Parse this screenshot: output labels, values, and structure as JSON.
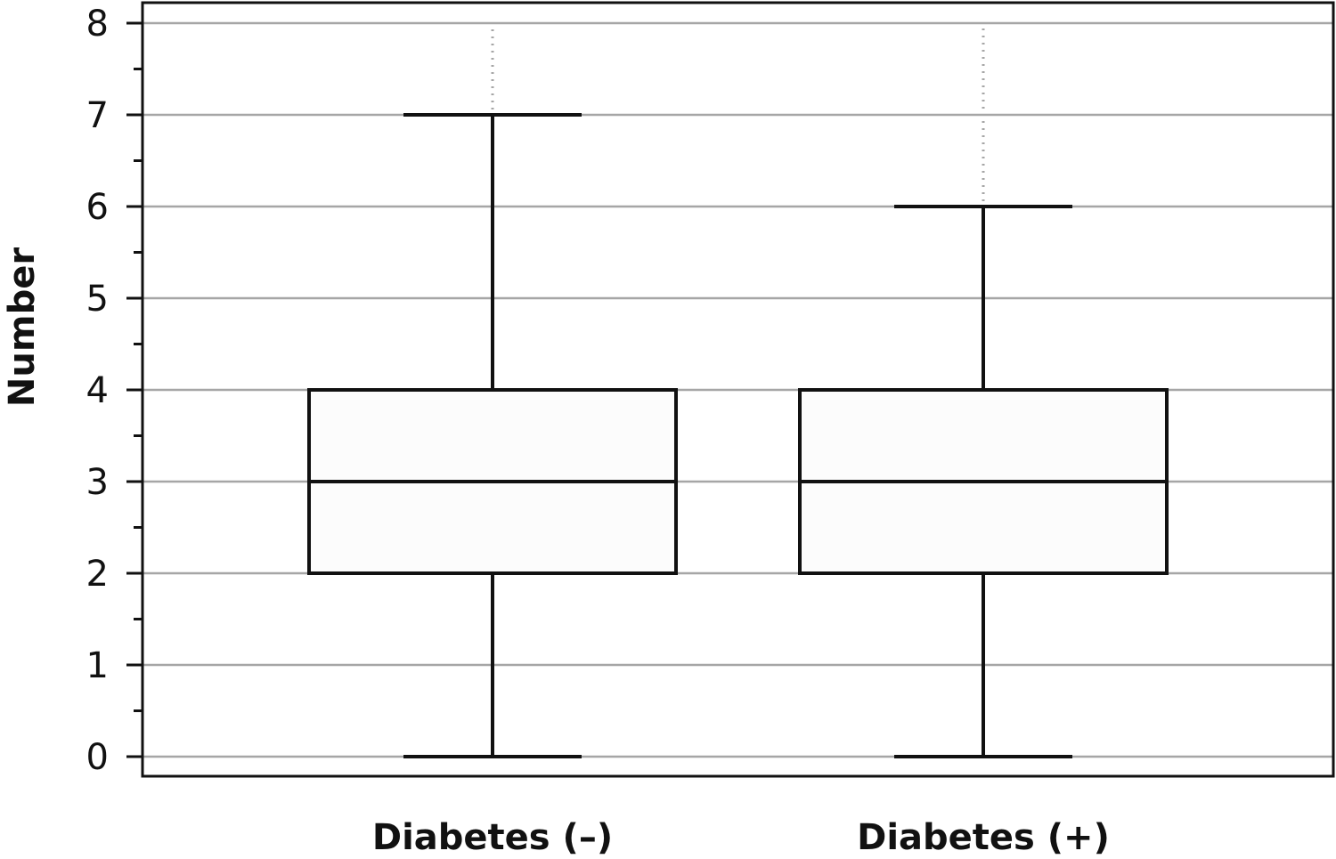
{
  "chart_data": {
    "type": "box",
    "title": "",
    "xlabel": "",
    "ylabel": "Number",
    "ylim": [
      0,
      8
    ],
    "yticks": [
      0,
      1,
      2,
      3,
      4,
      5,
      6,
      7,
      8
    ],
    "grid": true,
    "categories": [
      "Diabetes (–)",
      "Diabetes (+)"
    ],
    "boxes": [
      {
        "category": "Diabetes (–)",
        "min": 0,
        "q1": 2,
        "median": 3,
        "q3": 4,
        "max": 7,
        "extreme_max": 8
      },
      {
        "category": "Diabetes (+)",
        "min": 0,
        "q1": 2,
        "median": 3,
        "q3": 4,
        "max": 6,
        "extreme_max": 8
      }
    ]
  },
  "colors": {
    "grid": "#a6a6a6",
    "stroke": "#111111",
    "box_fill": "#fcfcfc",
    "outlier_line": "#a6a6a6"
  }
}
